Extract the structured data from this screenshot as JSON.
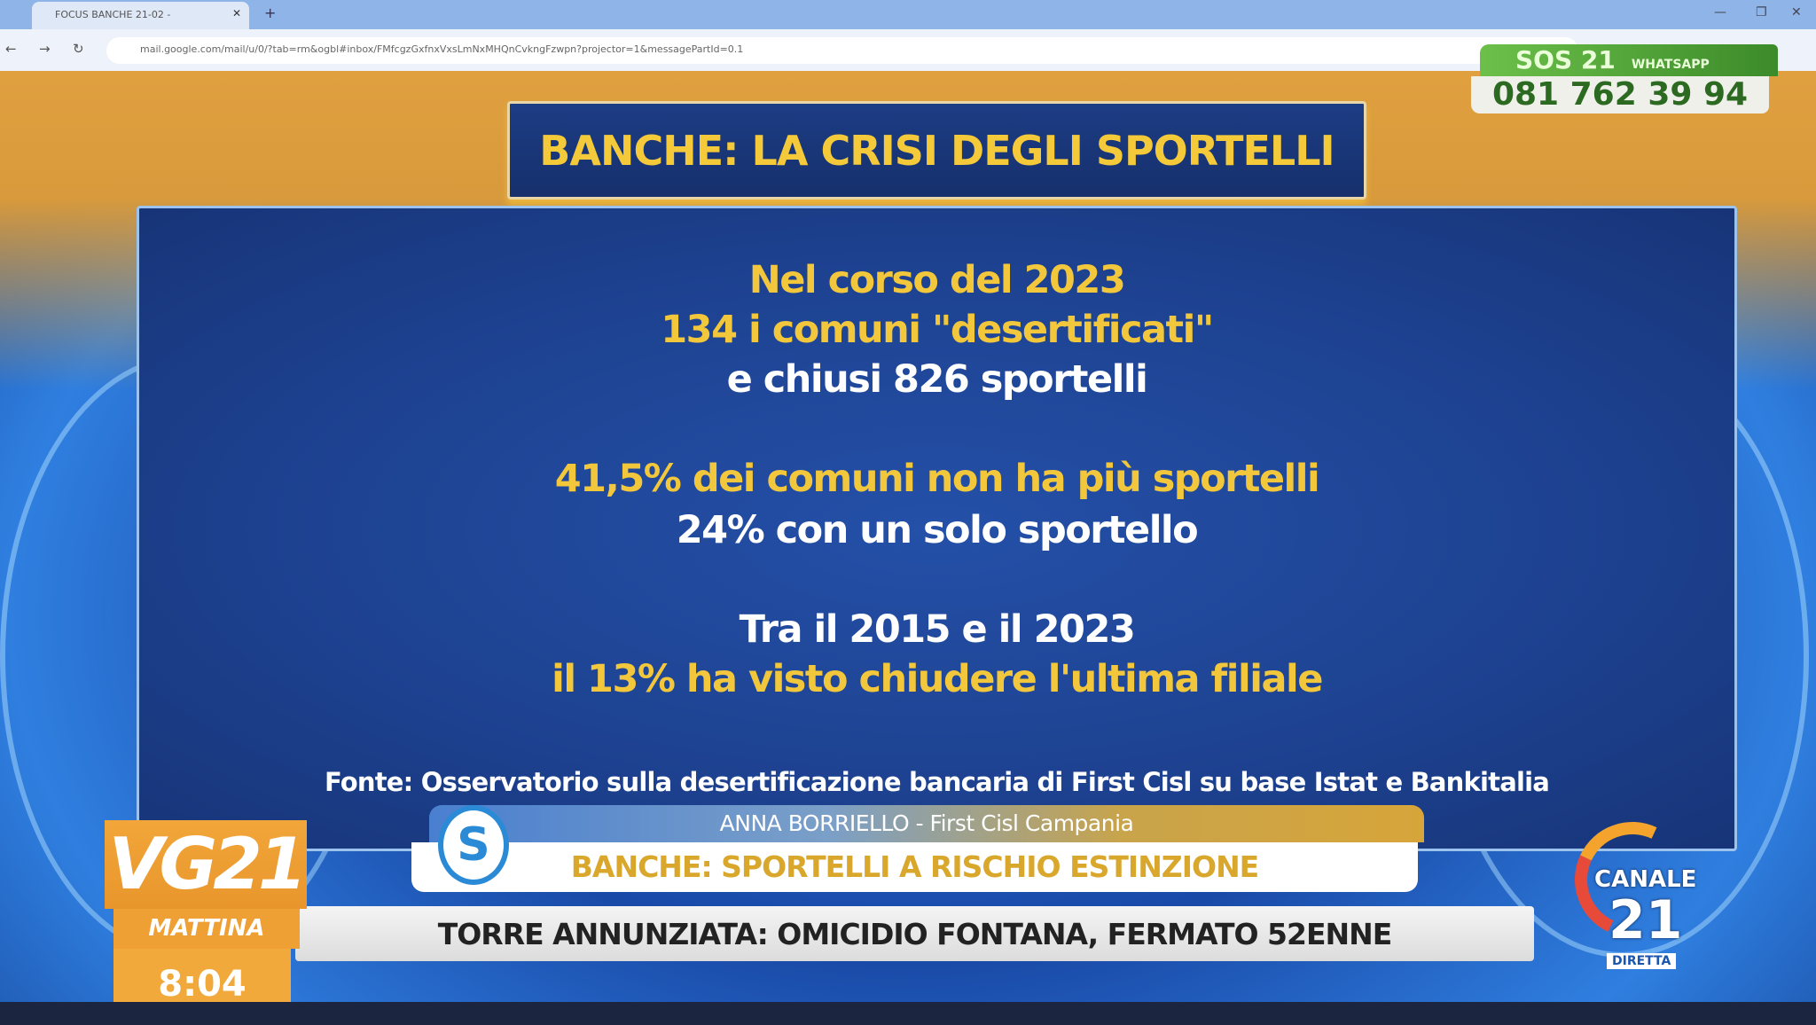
{
  "browser": {
    "tab_title": "FOCUS BANCHE 21-02 - ",
    "url": "mail.google.com/mail/u/0/?tab=rm&ogbl#inbox/FMfcgzGxfnxVxsLmNxMHQnCvkngFzwpn?projector=1&messagePartId=0.1"
  },
  "slide": {
    "title": "BANCHE: LA CRISI DEGLI SPORTELLI",
    "lines": [
      "Nel corso del 2023",
      "134 i comuni \"desertificati\"",
      "e chiusi 826 sportelli",
      "41,5% dei comuni non ha più sportelli",
      "24% con un solo sportello",
      "Tra il 2015 e il 2023",
      "il 13% ha visto chiudere l'ultima filiale"
    ],
    "source": "Fonte: Osservatorio sulla desertificazione bancaria di First Cisl su base Istat e Bankitalia"
  },
  "lower_third": {
    "guest": "ANNA BORRIELLO - First Cisl Campania",
    "headline": "BANCHE: SPORTELLI A RISCHIO ESTINZIONE"
  },
  "ticker": {
    "text": "TORRE ANNUNZIATA: OMICIDIO FONTANA, FERMATO 52ENNE"
  },
  "show": {
    "logo": "VG21",
    "edition": "MATTINA",
    "time": "8:04"
  },
  "channel": {
    "name": "CANALE",
    "number": "21",
    "status": "DIRETTA"
  },
  "sos": {
    "label": "SOS 21",
    "service": "WHATSAPP",
    "phone": "081 762 39 94"
  },
  "colors": {
    "accent_yellow": "#f2c73c",
    "panel_blue": "#1d418f",
    "sos_green": "#4ea636"
  }
}
